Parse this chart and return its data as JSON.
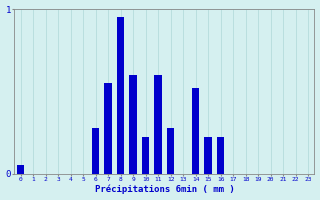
{
  "hours": [
    0,
    1,
    2,
    3,
    4,
    5,
    6,
    7,
    8,
    9,
    10,
    11,
    12,
    13,
    14,
    15,
    16,
    17,
    18,
    19,
    20,
    21,
    22,
    23
  ],
  "values": [
    0.05,
    0.0,
    0.0,
    0.0,
    0.0,
    0.0,
    0.28,
    0.55,
    0.95,
    0.6,
    0.22,
    0.6,
    0.28,
    0.0,
    0.52,
    0.22,
    0.22,
    0.0,
    0.0,
    0.0,
    0.0,
    0.0,
    0.0,
    0.0
  ],
  "bar_color": "#0000cc",
  "bg_color": "#d5f0f0",
  "grid_color": "#afd8d8",
  "axis_color": "#888888",
  "text_color": "#0000cc",
  "xlabel": "Précipitations 6min ( mm )",
  "ylim": [
    0,
    1.0
  ],
  "yticks": [
    0,
    1
  ],
  "xlim": [
    -0.5,
    23.5
  ],
  "bar_width": 0.6
}
